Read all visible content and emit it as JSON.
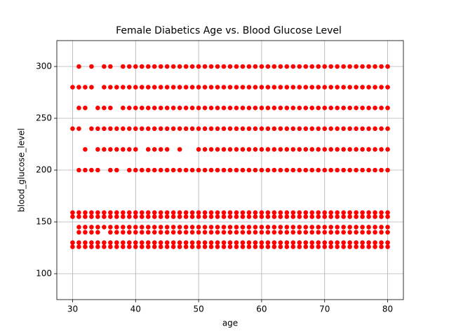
{
  "chart_data": {
    "type": "scatter",
    "title": "Female Diabetics Age vs. Blood Glucose Level",
    "x_label": "age",
    "y_label": "blood_glucose_level",
    "xlim": [
      27.5,
      82.5
    ],
    "ylim": [
      75,
      325
    ],
    "xticks": [
      30,
      40,
      50,
      60,
      70,
      80
    ],
    "yticks": [
      100,
      150,
      200,
      250,
      300
    ],
    "grid": true,
    "series": [
      {
        "color": "#ff0000",
        "x": [
          31,
          33,
          35,
          36,
          38,
          39,
          40,
          41,
          42,
          43,
          44,
          45,
          46,
          47,
          48,
          49,
          50,
          51,
          52,
          53,
          54,
          55,
          56,
          57,
          58,
          59,
          60,
          61,
          62,
          63,
          64,
          65,
          66,
          67,
          68,
          69,
          70,
          71,
          72,
          73,
          74,
          75,
          76,
          77,
          78,
          79,
          80
        ],
        "values": [
          300,
          300,
          300,
          300,
          300,
          300,
          300,
          300,
          300,
          300,
          300,
          300,
          300,
          300,
          300,
          300,
          300,
          300,
          300,
          300,
          300,
          300,
          300,
          300,
          300,
          300,
          300,
          300,
          300,
          300,
          300,
          300,
          300,
          300,
          300,
          300,
          300,
          300,
          300,
          300,
          300,
          300,
          300,
          300,
          300,
          300,
          300
        ]
      },
      {
        "color": "#ff0000",
        "x": [
          30,
          31,
          32,
          33,
          35,
          36,
          37,
          38,
          39,
          40,
          41,
          42,
          43,
          44,
          45,
          46,
          47,
          48,
          49,
          50,
          51,
          52,
          53,
          54,
          55,
          56,
          57,
          58,
          59,
          60,
          61,
          62,
          63,
          64,
          65,
          66,
          67,
          68,
          69,
          70,
          71,
          72,
          73,
          74,
          75,
          76,
          77,
          78,
          79,
          80
        ],
        "values": [
          280,
          280,
          280,
          280,
          280,
          280,
          280,
          280,
          280,
          280,
          280,
          280,
          280,
          280,
          280,
          280,
          280,
          280,
          280,
          280,
          280,
          280,
          280,
          280,
          280,
          280,
          280,
          280,
          280,
          280,
          280,
          280,
          280,
          280,
          280,
          280,
          280,
          280,
          280,
          280,
          280,
          280,
          280,
          280,
          280,
          280,
          280,
          280,
          280,
          280
        ]
      },
      {
        "color": "#ff0000",
        "x": [
          31,
          32,
          34,
          35,
          36,
          38,
          39,
          40,
          41,
          42,
          43,
          44,
          45,
          46,
          47,
          48,
          49,
          50,
          51,
          52,
          53,
          54,
          55,
          56,
          57,
          58,
          59,
          60,
          61,
          62,
          63,
          64,
          65,
          66,
          67,
          68,
          69,
          70,
          71,
          72,
          73,
          74,
          75,
          76,
          77,
          78,
          79,
          80
        ],
        "values": [
          260,
          260,
          260,
          260,
          260,
          260,
          260,
          260,
          260,
          260,
          260,
          260,
          260,
          260,
          260,
          260,
          260,
          260,
          260,
          260,
          260,
          260,
          260,
          260,
          260,
          260,
          260,
          260,
          260,
          260,
          260,
          260,
          260,
          260,
          260,
          260,
          260,
          260,
          260,
          260,
          260,
          260,
          260,
          260,
          260,
          260,
          260,
          260
        ]
      },
      {
        "color": "#ff0000",
        "x": [
          30,
          31,
          33,
          34,
          35,
          36,
          37,
          38,
          39,
          40,
          41,
          42,
          43,
          44,
          45,
          46,
          47,
          48,
          49,
          50,
          51,
          52,
          53,
          54,
          55,
          56,
          57,
          58,
          59,
          60,
          61,
          62,
          63,
          64,
          65,
          66,
          67,
          68,
          69,
          70,
          71,
          72,
          73,
          74,
          75,
          76,
          77,
          78,
          79,
          80
        ],
        "values": [
          240,
          240,
          240,
          240,
          240,
          240,
          240,
          240,
          240,
          240,
          240,
          240,
          240,
          240,
          240,
          240,
          240,
          240,
          240,
          240,
          240,
          240,
          240,
          240,
          240,
          240,
          240,
          240,
          240,
          240,
          240,
          240,
          240,
          240,
          240,
          240,
          240,
          240,
          240,
          240,
          240,
          240,
          240,
          240,
          240,
          240,
          240,
          240,
          240,
          240
        ]
      },
      {
        "color": "#ff0000",
        "x": [
          32,
          34,
          35,
          36,
          37,
          38,
          39,
          40,
          42,
          43,
          44,
          45,
          47,
          50,
          51,
          52,
          53,
          54,
          55,
          56,
          57,
          58,
          59,
          60,
          61,
          62,
          63,
          64,
          65,
          66,
          67,
          68,
          69,
          70,
          71,
          72,
          73,
          74,
          75,
          76,
          77,
          78,
          79,
          80
        ],
        "values": [
          220,
          220,
          220,
          220,
          220,
          220,
          220,
          220,
          220,
          220,
          220,
          220,
          220,
          220,
          220,
          220,
          220,
          220,
          220,
          220,
          220,
          220,
          220,
          220,
          220,
          220,
          220,
          220,
          220,
          220,
          220,
          220,
          220,
          220,
          220,
          220,
          220,
          220,
          220,
          220,
          220,
          220,
          220,
          220
        ]
      },
      {
        "color": "#ff0000",
        "x": [
          31,
          32,
          33,
          34,
          36,
          37,
          39,
          40,
          41,
          42,
          43,
          44,
          45,
          46,
          47,
          48,
          49,
          50,
          51,
          52,
          53,
          54,
          55,
          56,
          57,
          58,
          59,
          60,
          61,
          62,
          63,
          64,
          65,
          66,
          67,
          68,
          69,
          70,
          71,
          72,
          73,
          74,
          75,
          76,
          77,
          78,
          79,
          80
        ],
        "values": [
          200,
          200,
          200,
          200,
          200,
          200,
          200,
          200,
          200,
          200,
          200,
          200,
          200,
          200,
          200,
          200,
          200,
          200,
          200,
          200,
          200,
          200,
          200,
          200,
          200,
          200,
          200,
          200,
          200,
          200,
          200,
          200,
          200,
          200,
          200,
          200,
          200,
          200,
          200,
          200,
          200,
          200,
          200,
          200,
          200,
          200,
          200,
          200
        ]
      },
      {
        "color": "#ff0000",
        "x": [
          30,
          31,
          32,
          33,
          34,
          35,
          36,
          37,
          38,
          39,
          40,
          41,
          42,
          43,
          44,
          45,
          46,
          47,
          48,
          49,
          50,
          51,
          52,
          53,
          54,
          55,
          56,
          57,
          58,
          59,
          60,
          61,
          62,
          63,
          64,
          65,
          66,
          67,
          68,
          69,
          70,
          71,
          72,
          73,
          74,
          75,
          76,
          77,
          78,
          79,
          80
        ],
        "values": [
          159,
          159,
          159,
          159,
          159,
          159,
          159,
          159,
          159,
          159,
          159,
          159,
          159,
          159,
          159,
          159,
          159,
          159,
          159,
          159,
          159,
          159,
          159,
          159,
          159,
          159,
          159,
          159,
          159,
          159,
          159,
          159,
          159,
          159,
          159,
          159,
          159,
          159,
          159,
          159,
          159,
          159,
          159,
          159,
          159,
          159,
          159,
          159,
          159,
          159,
          159
        ]
      },
      {
        "color": "#ff0000",
        "x": [
          30,
          31,
          32,
          33,
          34,
          35,
          36,
          37,
          38,
          39,
          40,
          41,
          42,
          43,
          44,
          45,
          46,
          47,
          48,
          49,
          50,
          51,
          52,
          53,
          54,
          55,
          56,
          57,
          58,
          59,
          60,
          61,
          62,
          63,
          64,
          65,
          66,
          67,
          68,
          69,
          70,
          71,
          72,
          73,
          74,
          75,
          76,
          77,
          78,
          79,
          80
        ],
        "values": [
          155,
          155,
          155,
          155,
          155,
          155,
          155,
          155,
          155,
          155,
          155,
          155,
          155,
          155,
          155,
          155,
          155,
          155,
          155,
          155,
          155,
          155,
          155,
          155,
          155,
          155,
          155,
          155,
          155,
          155,
          155,
          155,
          155,
          155,
          155,
          155,
          155,
          155,
          155,
          155,
          155,
          155,
          155,
          155,
          155,
          155,
          155,
          155,
          155,
          155,
          155
        ]
      },
      {
        "color": "#ff0000",
        "x": [
          31,
          32,
          33,
          34,
          35,
          36,
          37,
          38,
          39,
          40,
          41,
          42,
          43,
          44,
          45,
          46,
          47,
          48,
          49,
          50,
          51,
          52,
          53,
          54,
          55,
          56,
          57,
          58,
          59,
          60,
          61,
          62,
          63,
          64,
          65,
          66,
          67,
          68,
          69,
          70,
          71,
          72,
          73,
          74,
          75,
          76,
          77,
          78,
          79,
          80
        ],
        "values": [
          145,
          145,
          145,
          145,
          145,
          145,
          145,
          145,
          145,
          145,
          145,
          145,
          145,
          145,
          145,
          145,
          145,
          145,
          145,
          145,
          145,
          145,
          145,
          145,
          145,
          145,
          145,
          145,
          145,
          145,
          145,
          145,
          145,
          145,
          145,
          145,
          145,
          145,
          145,
          145,
          145,
          145,
          145,
          145,
          145,
          145,
          145,
          145,
          145,
          145
        ]
      },
      {
        "color": "#ff0000",
        "x": [
          31,
          32,
          33,
          34,
          36,
          37,
          38,
          39,
          40,
          41,
          42,
          43,
          44,
          45,
          46,
          47,
          48,
          49,
          50,
          51,
          52,
          53,
          54,
          55,
          56,
          57,
          58,
          59,
          60,
          61,
          62,
          63,
          64,
          65,
          66,
          67,
          68,
          69,
          70,
          71,
          72,
          73,
          74,
          75,
          76,
          77,
          78,
          79,
          80
        ],
        "values": [
          140,
          140,
          140,
          140,
          140,
          140,
          140,
          140,
          140,
          140,
          140,
          140,
          140,
          140,
          140,
          140,
          140,
          140,
          140,
          140,
          140,
          140,
          140,
          140,
          140,
          140,
          140,
          140,
          140,
          140,
          140,
          140,
          140,
          140,
          140,
          140,
          140,
          140,
          140,
          140,
          140,
          140,
          140,
          140,
          140,
          140,
          140,
          140,
          140
        ]
      },
      {
        "color": "#ff0000",
        "x": [
          30,
          31,
          32,
          33,
          34,
          35,
          36,
          37,
          38,
          39,
          40,
          41,
          42,
          43,
          44,
          45,
          46,
          47,
          48,
          49,
          50,
          51,
          52,
          53,
          54,
          55,
          56,
          57,
          58,
          59,
          60,
          61,
          62,
          63,
          64,
          65,
          66,
          67,
          68,
          69,
          70,
          71,
          72,
          73,
          74,
          75,
          76,
          77,
          78,
          79,
          80
        ],
        "values": [
          130,
          130,
          130,
          130,
          130,
          130,
          130,
          130,
          130,
          130,
          130,
          130,
          130,
          130,
          130,
          130,
          130,
          130,
          130,
          130,
          130,
          130,
          130,
          130,
          130,
          130,
          130,
          130,
          130,
          130,
          130,
          130,
          130,
          130,
          130,
          130,
          130,
          130,
          130,
          130,
          130,
          130,
          130,
          130,
          130,
          130,
          130,
          130,
          130,
          130,
          130
        ]
      },
      {
        "color": "#ff0000",
        "x": [
          30,
          31,
          32,
          33,
          34,
          35,
          36,
          37,
          38,
          39,
          40,
          41,
          42,
          43,
          44,
          45,
          46,
          47,
          48,
          49,
          50,
          51,
          52,
          53,
          54,
          55,
          56,
          57,
          58,
          59,
          60,
          61,
          62,
          63,
          64,
          65,
          66,
          67,
          68,
          69,
          70,
          71,
          72,
          73,
          74,
          75,
          76,
          77,
          78,
          79,
          80
        ],
        "values": [
          126,
          126,
          126,
          126,
          126,
          126,
          126,
          126,
          126,
          126,
          126,
          126,
          126,
          126,
          126,
          126,
          126,
          126,
          126,
          126,
          126,
          126,
          126,
          126,
          126,
          126,
          126,
          126,
          126,
          126,
          126,
          126,
          126,
          126,
          126,
          126,
          126,
          126,
          126,
          126,
          126,
          126,
          126,
          126,
          126,
          126,
          126,
          126,
          126,
          126,
          126
        ]
      }
    ]
  }
}
